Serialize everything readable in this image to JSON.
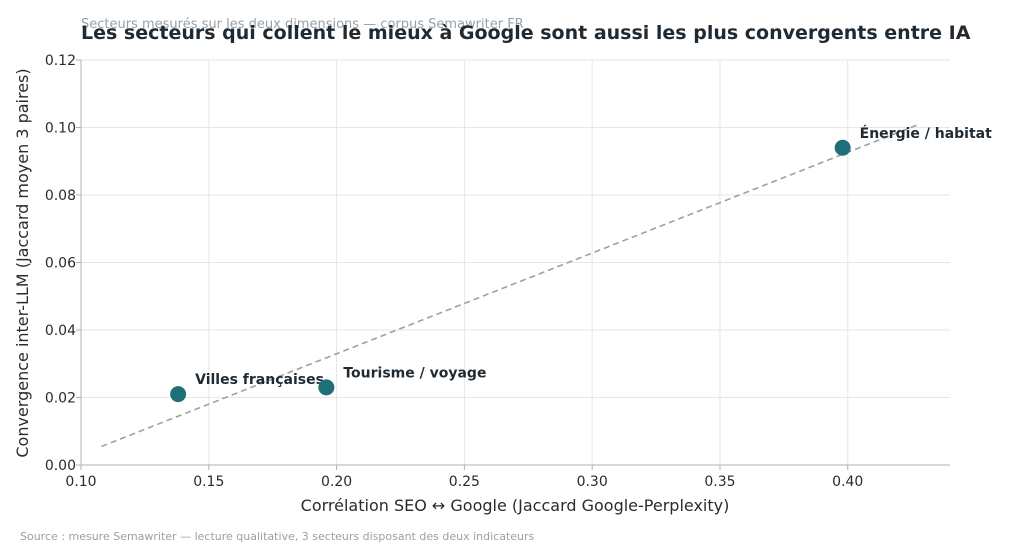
{
  "chart_data": {
    "type": "scatter",
    "title": "Les secteurs qui collent le mieux à Google sont aussi les plus convergents entre IA",
    "subtitle": "Secteurs mesurés sur les deux dimensions — corpus Semawriter FR",
    "xlabel": "Corrélation SEO ↔ Google (Jaccard Google-Perplexity)",
    "ylabel": "Convergence inter-LLM (Jaccard moyen 3 paires)",
    "source": "Source : mesure Semawriter — lecture qualitative, 3 secteurs disposant des deux indicateurs",
    "xlim": [
      0.1,
      0.44
    ],
    "ylim": [
      0.0,
      0.12
    ],
    "xticks": [
      "0.10",
      "0.15",
      "0.20",
      "0.25",
      "0.30",
      "0.35",
      "0.40"
    ],
    "yticks": [
      "0.00",
      "0.02",
      "0.04",
      "0.06",
      "0.08",
      "0.10",
      "0.12"
    ],
    "grid": true,
    "point_color": "#1f6f78",
    "trend_color": "#a0a0a0",
    "points": [
      {
        "label": "Villes françaises",
        "x": 0.138,
        "y": 0.021
      },
      {
        "label": "Tourisme / voyage",
        "x": 0.196,
        "y": 0.023
      },
      {
        "label": "Énergie / habitat",
        "x": 0.398,
        "y": 0.094
      }
    ],
    "trendline": {
      "x": [
        0.108,
        0.428
      ],
      "y": [
        0.0055,
        0.101
      ]
    }
  }
}
